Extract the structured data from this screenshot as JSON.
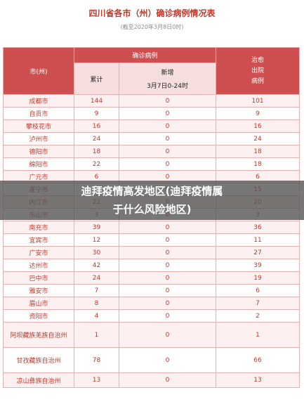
{
  "title": "四川省各市（州）确诊病例情况表",
  "subtitle": "(截至2020年3月8日0时)",
  "table": {
    "header": {
      "city": "市(州)",
      "confirmed_group": "确诊病例",
      "cumulative": "累计",
      "new_line1": "新增",
      "new_line2": "3月7日0-24时",
      "cured_line1": "治愈",
      "cured_line2": "出院",
      "cured_line3": "病例"
    },
    "rows": [
      {
        "city": "成都市",
        "total": "144",
        "new": "0",
        "cured": "101"
      },
      {
        "city": "自贡市",
        "total": "9",
        "new": "0",
        "cured": "9"
      },
      {
        "city": "攀枝花市",
        "total": "16",
        "new": "0",
        "cured": "16"
      },
      {
        "city": "泸州市",
        "total": "24",
        "new": "0",
        "cured": "24"
      },
      {
        "city": "德阳市",
        "total": "18",
        "new": "0",
        "cured": "18"
      },
      {
        "city": "绵阳市",
        "total": "22",
        "new": "0",
        "cured": "18"
      },
      {
        "city": "广元市",
        "total": "6",
        "new": "0",
        "cured": "6"
      },
      {
        "city": "遂宁市",
        "total": "17",
        "new": "0",
        "cured": "15"
      },
      {
        "city": "内江市",
        "total": "22",
        "new": "0",
        "cured": "20"
      },
      {
        "city": "乐山市",
        "total": "3",
        "new": "0",
        "cured": "3"
      },
      {
        "city": "南充市",
        "total": "39",
        "new": "0",
        "cured": "36"
      },
      {
        "city": "宜宾市",
        "total": "12",
        "new": "0",
        "cured": "11"
      },
      {
        "city": "广安市",
        "total": "30",
        "new": "0",
        "cured": "27"
      },
      {
        "city": "达州市",
        "total": "42",
        "new": "0",
        "cured": "39"
      },
      {
        "city": "巴中市",
        "total": "24",
        "new": "0",
        "cured": "19"
      },
      {
        "city": "雅安市",
        "total": "7",
        "new": "0",
        "cured": "6"
      },
      {
        "city": "眉山市",
        "total": "8",
        "new": "0",
        "cured": "7"
      },
      {
        "city": "资阳市",
        "total": "4",
        "new": "0",
        "cured": "2"
      },
      {
        "city": "阿坝藏族羌族自治州",
        "total": "1",
        "new": "0",
        "cured": "1"
      },
      {
        "city": "甘孜藏族自治州",
        "total": "78",
        "new": "0",
        "cured": "66"
      },
      {
        "city": "凉山彝族自治州",
        "total": "13",
        "new": "0",
        "cured": "13"
      }
    ]
  },
  "overlay": {
    "line1": "迪拜疫情高发地区(迪拜疫情属",
    "line2": "于什么风险地区)"
  }
}
